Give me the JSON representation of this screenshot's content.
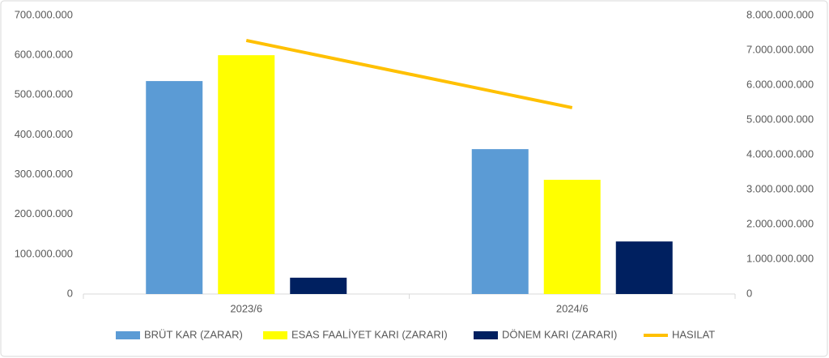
{
  "chart_data": {
    "type": "bar",
    "categories": [
      "2023/6",
      "2024/6"
    ],
    "series": [
      {
        "name": "BRÜT KAR (ZARAR)",
        "color": "#5b9bd5",
        "values": [
          535000000,
          364000000
        ]
      },
      {
        "name": "ESAS FAALİYET KARI (ZARARI)",
        "color": "#ffff00",
        "values": [
          600000000,
          287000000
        ]
      },
      {
        "name": "DÖNEM KARI (ZARARI)",
        "color": "#002060",
        "values": [
          41000000,
          132000000
        ]
      },
      {
        "name": "HASILAT",
        "color": "#ffc000",
        "type": "line",
        "axis": "y2",
        "values": [
          7280000000,
          5350000000
        ]
      }
    ],
    "ylim": [
      0,
      700000000
    ],
    "yticks": [
      0,
      {
        "value": 100000000,
        "label": "100.000.000"
      },
      {
        "value": 200000000,
        "label": "200.000.000"
      },
      {
        "value": 300000000,
        "label": "300.000.000"
      },
      {
        "value": 400000000,
        "label": "400.000.000"
      },
      {
        "value": 500000000,
        "label": "500.000.000"
      },
      {
        "value": 600000000,
        "label": "600.000.000"
      },
      {
        "value": 700000000,
        "label": "700.000.000"
      }
    ],
    "y2lim": [
      0,
      8000000000
    ],
    "y2ticks": [
      0,
      {
        "value": 1000000000,
        "label": "1.000.000.000"
      },
      {
        "value": 2000000000,
        "label": "2.000.000.000"
      },
      {
        "value": 3000000000,
        "label": "3.000.000.000"
      },
      {
        "value": 4000000000,
        "label": "4.000.000.000"
      },
      {
        "value": 5000000000,
        "label": "5.000.000.000"
      },
      {
        "value": 6000000000,
        "label": "6.000.000.000"
      },
      {
        "value": 7000000000,
        "label": "7.000.000.000"
      },
      {
        "value": 8000000000,
        "label": "8.000.000.000"
      }
    ],
    "legend": "bottom"
  }
}
